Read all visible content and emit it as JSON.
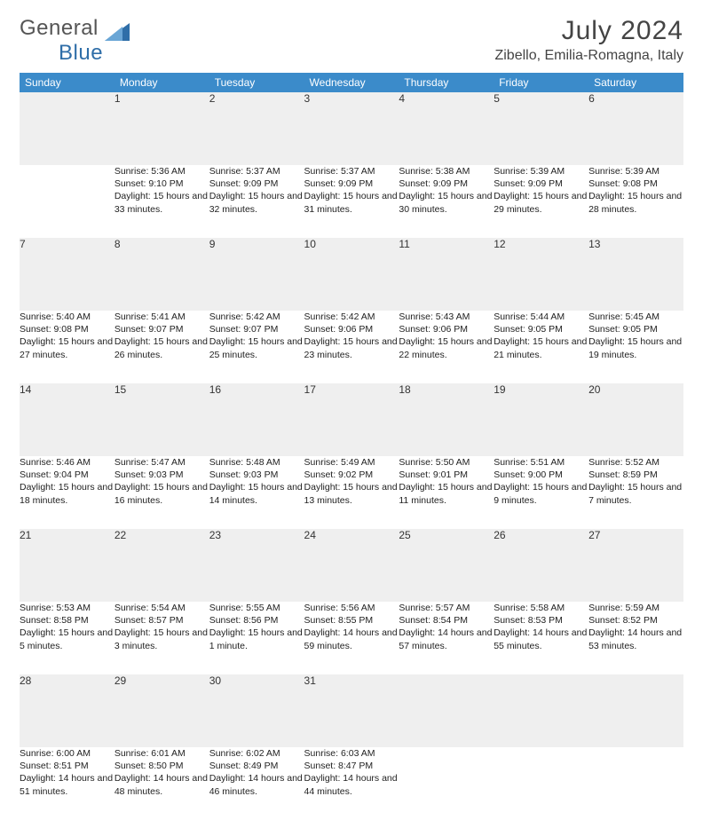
{
  "brand": {
    "name1": "General",
    "name2": "Blue"
  },
  "title": "July 2024",
  "location": "Zibello, Emilia-Romagna, Italy",
  "colors": {
    "header_bg": "#3b8bca",
    "header_text": "#ffffff",
    "daynum_bg": "#efefef",
    "row_divider": "#4477aa",
    "body_text": "#222222",
    "title_text": "#444444"
  },
  "typography": {
    "title_fontsize": 30,
    "location_fontsize": 16,
    "weekday_fontsize": 12,
    "daynum_fontsize": 12,
    "body_fontsize": 10.5
  },
  "weekdays": [
    "Sunday",
    "Monday",
    "Tuesday",
    "Wednesday",
    "Thursday",
    "Friday",
    "Saturday"
  ],
  "weeks": [
    [
      null,
      {
        "n": "1",
        "sunrise": "5:36 AM",
        "sunset": "9:10 PM",
        "daylight": "15 hours and 33 minutes."
      },
      {
        "n": "2",
        "sunrise": "5:37 AM",
        "sunset": "9:09 PM",
        "daylight": "15 hours and 32 minutes."
      },
      {
        "n": "3",
        "sunrise": "5:37 AM",
        "sunset": "9:09 PM",
        "daylight": "15 hours and 31 minutes."
      },
      {
        "n": "4",
        "sunrise": "5:38 AM",
        "sunset": "9:09 PM",
        "daylight": "15 hours and 30 minutes."
      },
      {
        "n": "5",
        "sunrise": "5:39 AM",
        "sunset": "9:09 PM",
        "daylight": "15 hours and 29 minutes."
      },
      {
        "n": "6",
        "sunrise": "5:39 AM",
        "sunset": "9:08 PM",
        "daylight": "15 hours and 28 minutes."
      }
    ],
    [
      {
        "n": "7",
        "sunrise": "5:40 AM",
        "sunset": "9:08 PM",
        "daylight": "15 hours and 27 minutes."
      },
      {
        "n": "8",
        "sunrise": "5:41 AM",
        "sunset": "9:07 PM",
        "daylight": "15 hours and 26 minutes."
      },
      {
        "n": "9",
        "sunrise": "5:42 AM",
        "sunset": "9:07 PM",
        "daylight": "15 hours and 25 minutes."
      },
      {
        "n": "10",
        "sunrise": "5:42 AM",
        "sunset": "9:06 PM",
        "daylight": "15 hours and 23 minutes."
      },
      {
        "n": "11",
        "sunrise": "5:43 AM",
        "sunset": "9:06 PM",
        "daylight": "15 hours and 22 minutes."
      },
      {
        "n": "12",
        "sunrise": "5:44 AM",
        "sunset": "9:05 PM",
        "daylight": "15 hours and 21 minutes."
      },
      {
        "n": "13",
        "sunrise": "5:45 AM",
        "sunset": "9:05 PM",
        "daylight": "15 hours and 19 minutes."
      }
    ],
    [
      {
        "n": "14",
        "sunrise": "5:46 AM",
        "sunset": "9:04 PM",
        "daylight": "15 hours and 18 minutes."
      },
      {
        "n": "15",
        "sunrise": "5:47 AM",
        "sunset": "9:03 PM",
        "daylight": "15 hours and 16 minutes."
      },
      {
        "n": "16",
        "sunrise": "5:48 AM",
        "sunset": "9:03 PM",
        "daylight": "15 hours and 14 minutes."
      },
      {
        "n": "17",
        "sunrise": "5:49 AM",
        "sunset": "9:02 PM",
        "daylight": "15 hours and 13 minutes."
      },
      {
        "n": "18",
        "sunrise": "5:50 AM",
        "sunset": "9:01 PM",
        "daylight": "15 hours and 11 minutes."
      },
      {
        "n": "19",
        "sunrise": "5:51 AM",
        "sunset": "9:00 PM",
        "daylight": "15 hours and 9 minutes."
      },
      {
        "n": "20",
        "sunrise": "5:52 AM",
        "sunset": "8:59 PM",
        "daylight": "15 hours and 7 minutes."
      }
    ],
    [
      {
        "n": "21",
        "sunrise": "5:53 AM",
        "sunset": "8:58 PM",
        "daylight": "15 hours and 5 minutes."
      },
      {
        "n": "22",
        "sunrise": "5:54 AM",
        "sunset": "8:57 PM",
        "daylight": "15 hours and 3 minutes."
      },
      {
        "n": "23",
        "sunrise": "5:55 AM",
        "sunset": "8:56 PM",
        "daylight": "15 hours and 1 minute."
      },
      {
        "n": "24",
        "sunrise": "5:56 AM",
        "sunset": "8:55 PM",
        "daylight": "14 hours and 59 minutes."
      },
      {
        "n": "25",
        "sunrise": "5:57 AM",
        "sunset": "8:54 PM",
        "daylight": "14 hours and 57 minutes."
      },
      {
        "n": "26",
        "sunrise": "5:58 AM",
        "sunset": "8:53 PM",
        "daylight": "14 hours and 55 minutes."
      },
      {
        "n": "27",
        "sunrise": "5:59 AM",
        "sunset": "8:52 PM",
        "daylight": "14 hours and 53 minutes."
      }
    ],
    [
      {
        "n": "28",
        "sunrise": "6:00 AM",
        "sunset": "8:51 PM",
        "daylight": "14 hours and 51 minutes."
      },
      {
        "n": "29",
        "sunrise": "6:01 AM",
        "sunset": "8:50 PM",
        "daylight": "14 hours and 48 minutes."
      },
      {
        "n": "30",
        "sunrise": "6:02 AM",
        "sunset": "8:49 PM",
        "daylight": "14 hours and 46 minutes."
      },
      {
        "n": "31",
        "sunrise": "6:03 AM",
        "sunset": "8:47 PM",
        "daylight": "14 hours and 44 minutes."
      },
      null,
      null,
      null
    ]
  ],
  "labels": {
    "sunrise": "Sunrise:",
    "sunset": "Sunset:",
    "daylight": "Daylight:"
  }
}
